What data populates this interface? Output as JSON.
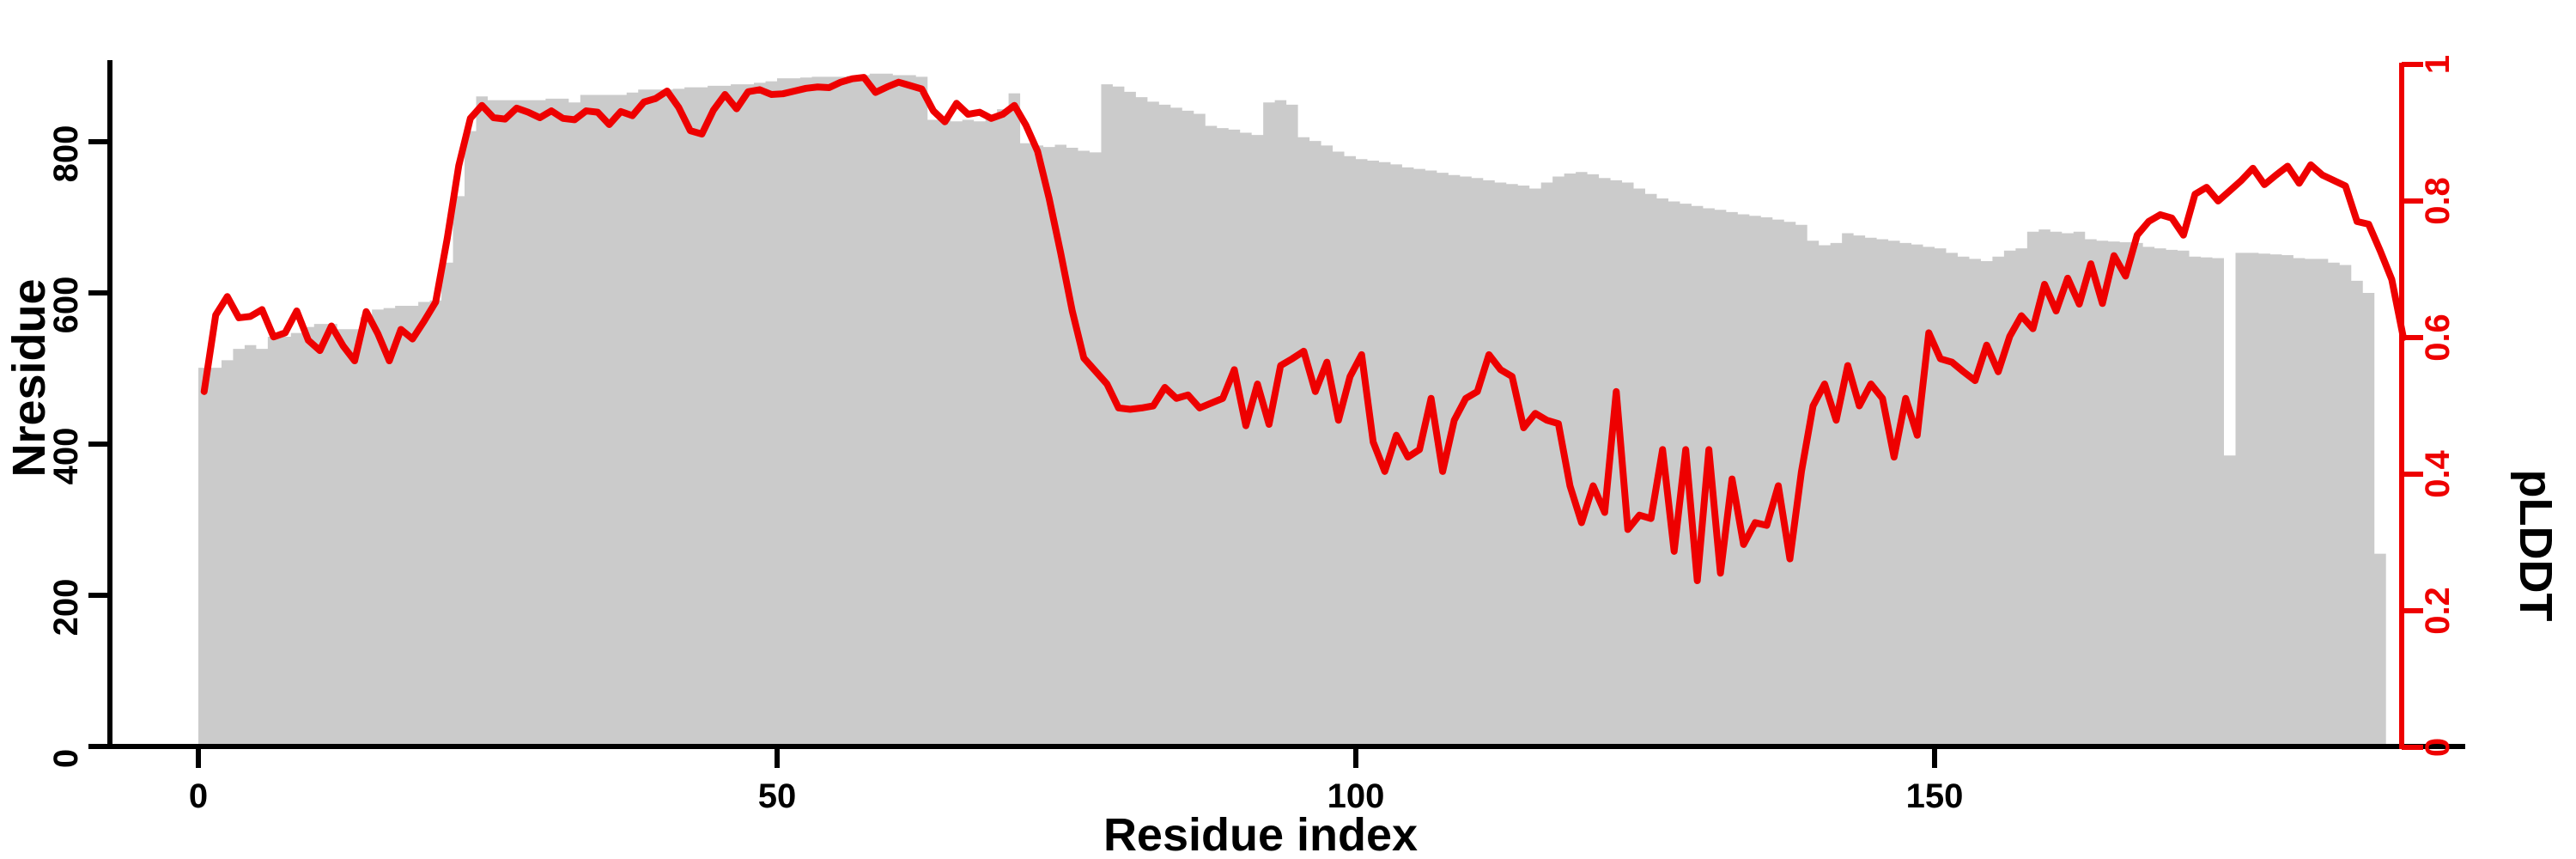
{
  "chart_data": {
    "type": "bar+line",
    "title": "",
    "xlabel": "Residue index",
    "ylabel_left": "Nresidue",
    "ylabel_right": "pLDDT",
    "x_ticks": [
      "0",
      "50",
      "100",
      "150"
    ],
    "x_tick_values": [
      0,
      50,
      100,
      150
    ],
    "y_left_ticks": [
      "0",
      "200",
      "400",
      "600",
      "800"
    ],
    "y_left_tick_values": [
      0,
      200,
      400,
      600,
      800
    ],
    "y_left_range": [
      0,
      908
    ],
    "y_right_ticks": [
      "0",
      "0.2",
      "0.4",
      "0.6",
      "0.8",
      "1"
    ],
    "y_right_tick_values": [
      0,
      0.2,
      0.4,
      0.6,
      0.8,
      1
    ],
    "y_right_range": [
      0,
      1
    ],
    "x_range": [
      0,
      190
    ],
    "grid": "off",
    "legend": "none",
    "bar_series": {
      "name": "Nresidue",
      "color": "#cbcbcb",
      "values": [
        501,
        501,
        511,
        526,
        531,
        526,
        542,
        542,
        547,
        555,
        559,
        559,
        552,
        552,
        568,
        578,
        580,
        583,
        583,
        588,
        590,
        640,
        728,
        814,
        860,
        855,
        855,
        855,
        855,
        855,
        857,
        857,
        852,
        862,
        862,
        862,
        862,
        865,
        869,
        869,
        869,
        870,
        872,
        872,
        874,
        874,
        876,
        876,
        878,
        880,
        884,
        884,
        885,
        886,
        886,
        886,
        887,
        888,
        890,
        890,
        888,
        888,
        886,
        829,
        829,
        827,
        829,
        827,
        829,
        843,
        864,
        798,
        795,
        793,
        796,
        792,
        788,
        786,
        876,
        873,
        866,
        859,
        853,
        849,
        845,
        841,
        837,
        821,
        818,
        816,
        812,
        809,
        852,
        855,
        849,
        806,
        801,
        795,
        787,
        781,
        777,
        775,
        773,
        770,
        766,
        764,
        762,
        759,
        756,
        754,
        752,
        749,
        746,
        744,
        742,
        738,
        746,
        754,
        758,
        760,
        757,
        752,
        749,
        746,
        738,
        731,
        725,
        721,
        718,
        715,
        712,
        710,
        707,
        704,
        702,
        700,
        697,
        694,
        690,
        669,
        663,
        666,
        679,
        676,
        673,
        671,
        669,
        666,
        664,
        661,
        659,
        653,
        648,
        645,
        642,
        648,
        656,
        659,
        681,
        684,
        681,
        679,
        681,
        671,
        669,
        668,
        667,
        666,
        661,
        659,
        657,
        656,
        648,
        647,
        646,
        385,
        653,
        653,
        652,
        651,
        650,
        646,
        645,
        645,
        640,
        637,
        616,
        600,
        255
      ]
    },
    "line_series": {
      "name": "pLDDT",
      "color": "#ee0000",
      "values": [
        0.521,
        0.633,
        0.66,
        0.629,
        0.631,
        0.641,
        0.601,
        0.607,
        0.639,
        0.596,
        0.581,
        0.617,
        0.588,
        0.566,
        0.638,
        0.606,
        0.566,
        0.612,
        0.598,
        0.624,
        0.652,
        0.745,
        0.852,
        0.921,
        0.94,
        0.922,
        0.92,
        0.936,
        0.93,
        0.922,
        0.932,
        0.921,
        0.919,
        0.932,
        0.93,
        0.912,
        0.931,
        0.925,
        0.945,
        0.95,
        0.961,
        0.937,
        0.903,
        0.898,
        0.933,
        0.956,
        0.935,
        0.96,
        0.963,
        0.956,
        0.957,
        0.961,
        0.965,
        0.967,
        0.966,
        0.974,
        0.979,
        0.981,
        0.959,
        0.967,
        0.974,
        0.969,
        0.964,
        0.932,
        0.916,
        0.943,
        0.927,
        0.93,
        0.921,
        0.927,
        0.94,
        0.911,
        0.873,
        0.804,
        0.724,
        0.639,
        0.57,
        0.551,
        0.532,
        0.497,
        0.495,
        0.497,
        0.5,
        0.527,
        0.511,
        0.516,
        0.497,
        0.504,
        0.511,
        0.553,
        0.471,
        0.532,
        0.473,
        0.559,
        0.569,
        0.58,
        0.521,
        0.564,
        0.479,
        0.543,
        0.575,
        0.447,
        0.404,
        0.457,
        0.425,
        0.436,
        0.511,
        0.404,
        0.479,
        0.511,
        0.521,
        0.575,
        0.553,
        0.543,
        0.468,
        0.489,
        0.479,
        0.474,
        0.383,
        0.329,
        0.383,
        0.344,
        0.521,
        0.319,
        0.34,
        0.335,
        0.436,
        0.287,
        0.436,
        0.244,
        0.436,
        0.255,
        0.393,
        0.297,
        0.329,
        0.325,
        0.383,
        0.276,
        0.404,
        0.5,
        0.532,
        0.479,
        0.559,
        0.5,
        0.532,
        0.511,
        0.425,
        0.511,
        0.457,
        0.607,
        0.569,
        0.564,
        0.55,
        0.537,
        0.589,
        0.55,
        0.602,
        0.632,
        0.613,
        0.678,
        0.639,
        0.687,
        0.649,
        0.708,
        0.65,
        0.72,
        0.69,
        0.75,
        0.77,
        0.78,
        0.775,
        0.75,
        0.81,
        0.82,
        0.8,
        0.815,
        0.83,
        0.848,
        0.824,
        0.838,
        0.851,
        0.826,
        0.853,
        0.838,
        0.83,
        0.822,
        0.77,
        0.766,
        0.727,
        0.685,
        0.6
      ]
    }
  },
  "colors": {
    "background": "#ffffff",
    "axis": "#000000",
    "right_axis": "#ee0000",
    "bars": "#cbcbcb",
    "line": "#ee0000"
  }
}
